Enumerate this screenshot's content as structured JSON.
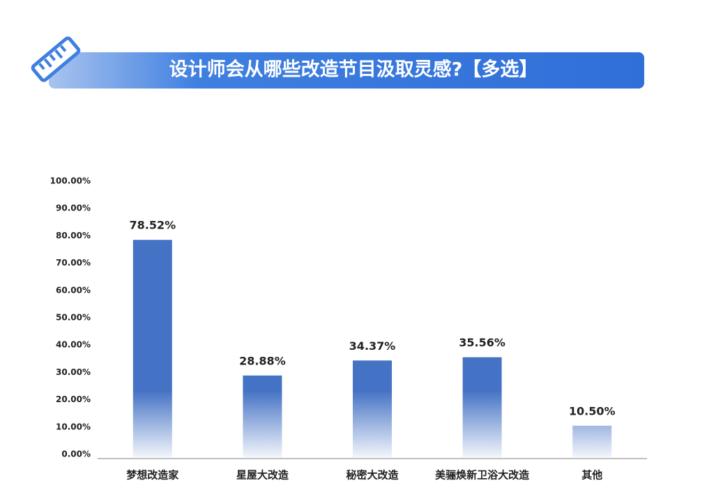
{
  "chart_data": {
    "type": "bar",
    "title": "设计师会从哪些改造节目汲取灵感?【多选】",
    "categories": [
      "梦想改造家",
      "星屋大改造",
      "秘密大改造",
      "美骊焕新卫浴大改造",
      "其他"
    ],
    "values": [
      78.52,
      28.88,
      34.37,
      35.56,
      10.5
    ],
    "value_labels": [
      "78.52%",
      "28.88%",
      "34.37%",
      "35.56%",
      "10.50%"
    ],
    "color": "#4472c4",
    "ylim": [
      0,
      100
    ],
    "yticks": [
      {
        "value": 0,
        "label": "0.00%"
      },
      {
        "value": 10,
        "label": "10.00%"
      },
      {
        "value": 20,
        "label": "20.00%"
      },
      {
        "value": 30,
        "label": "30.00%"
      },
      {
        "value": 40,
        "label": "40.00%"
      },
      {
        "value": 50,
        "label": "50.00%"
      },
      {
        "value": 60,
        "label": "60.00%"
      },
      {
        "value": 70,
        "label": "70.00%"
      },
      {
        "value": 80,
        "label": "80.00%"
      },
      {
        "value": 90,
        "label": "90.00%"
      },
      {
        "value": 100,
        "label": "100.00%"
      }
    ],
    "grid": false
  }
}
